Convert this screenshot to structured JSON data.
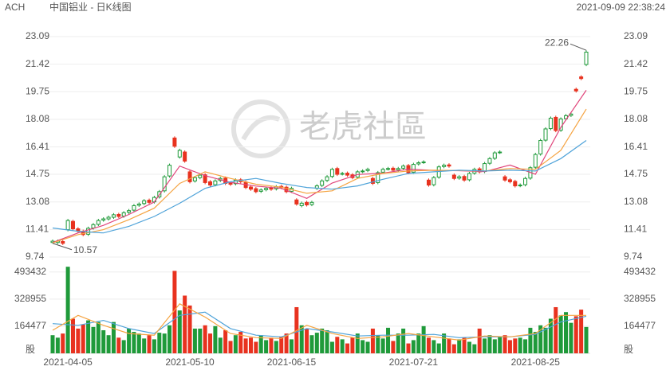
{
  "chart_data": {
    "type": "candlestick",
    "ticker": "ACH",
    "title": "中国铝业 - 日K线图",
    "timestamp": "2021-09-09 22:38:24",
    "watermark": "老虎社區",
    "categories": [
      null,
      null,
      null,
      "2021-04-05",
      null,
      null,
      null,
      null,
      null,
      null,
      null,
      null,
      null,
      null,
      null,
      null,
      null,
      null,
      null,
      null,
      null,
      null,
      null,
      null,
      null,
      null,
      null,
      "2021-05-10",
      null,
      null,
      null,
      null,
      null,
      null,
      null,
      null,
      null,
      null,
      null,
      null,
      null,
      null,
      null,
      null,
      null,
      null,
      null,
      "2021-06-15",
      null,
      null,
      null,
      null,
      null,
      null,
      null,
      null,
      null,
      null,
      null,
      null,
      null,
      null,
      null,
      null,
      null,
      null,
      null,
      null,
      null,
      null,
      null,
      "2021-07-21",
      null,
      null,
      null,
      null,
      null,
      null,
      null,
      null,
      null,
      null,
      null,
      null,
      null,
      null,
      null,
      null,
      null,
      null,
      null,
      null,
      null,
      null,
      null,
      "2021-08-25",
      null,
      null,
      null,
      null,
      null,
      null,
      null,
      null,
      null,
      null
    ],
    "open": [
      10.62,
      10.62,
      10.68,
      11.4,
      11.9,
      11.45,
      11.3,
      11.12,
      11.5,
      11.72,
      11.98,
      12.05,
      12.15,
      12.32,
      12.22,
      12.45,
      12.58,
      12.88,
      12.98,
      13.18,
      13.08,
      13.38,
      13.75,
      14.65,
      16.95,
      15.8,
      16.1,
      14.9,
      14.35,
      14.55,
      14.72,
      14.3,
      14.12,
      14.38,
      14.52,
      14.22,
      14.18,
      14.42,
      14.28,
      13.98,
      13.88,
      13.72,
      13.82,
      13.92,
      13.87,
      14.02,
      13.97,
      13.72,
      13.2,
      12.85,
      13.05,
      12.92,
      13.9,
      14.08,
      14.38,
      14.62,
      15.1,
      14.78,
      14.82,
      14.72,
      14.58,
      14.92,
      14.98,
      14.5,
      14.25,
      14.88,
      15.08,
      15.12,
      15.02,
      15.12,
      15.28,
      14.88,
      15.38,
      15.48,
      14.4,
      14.12,
      14.58,
      15.22,
      15.32,
      14.7,
      14.52,
      14.62,
      14.42,
      14.82,
      15.08,
      14.92,
      15.42,
      15.72,
      16.08,
      14.6,
      14.42,
      14.32,
      14.07,
      14.12,
      14.52,
      15.18,
      15.98,
      16.82,
      17.52,
      18.2,
      17.42,
      18.12,
      18.32,
      19.9,
      20.65,
      21.4
    ],
    "high": [
      10.8,
      10.8,
      10.78,
      12.05,
      12.0,
      11.55,
      11.4,
      11.58,
      11.8,
      12.05,
      12.15,
      12.25,
      12.4,
      12.42,
      12.52,
      12.65,
      12.95,
      13.05,
      13.25,
      13.28,
      13.45,
      13.8,
      14.7,
      15.4,
      17.05,
      16.3,
      16.2,
      15.0,
      14.65,
      14.8,
      14.82,
      14.4,
      14.45,
      14.6,
      14.62,
      14.32,
      14.5,
      14.52,
      14.38,
      14.08,
      13.98,
      13.9,
      14.0,
      14.02,
      14.1,
      14.12,
      14.07,
      14.0,
      13.3,
      13.1,
      13.15,
      13.15,
      14.15,
      14.45,
      14.7,
      15.15,
      15.2,
      14.9,
      14.92,
      14.82,
      15.0,
      15.05,
      15.15,
      14.6,
      14.95,
      15.15,
      15.2,
      15.22,
      15.2,
      15.35,
      15.38,
      15.45,
      15.55,
      15.6,
      14.5,
      14.65,
      15.3,
      15.4,
      15.42,
      14.8,
      14.7,
      14.72,
      14.9,
      15.15,
      15.18,
      15.5,
      15.8,
      16.15,
      16.2,
      14.7,
      14.52,
      14.42,
      14.2,
      14.6,
      15.25,
      16.05,
      16.9,
      17.6,
      18.25,
      18.3,
      18.2,
      18.4,
      18.5,
      20.0,
      20.75,
      22.26
    ],
    "low": [
      10.57,
      10.52,
      10.47,
      11.3,
      11.35,
      11.2,
      11.0,
      11.02,
      11.4,
      11.62,
      11.88,
      11.95,
      12.05,
      12.1,
      12.12,
      12.35,
      12.48,
      12.78,
      12.88,
      12.95,
      12.98,
      13.28,
      13.65,
      14.55,
      16.35,
      15.7,
      15.45,
      14.2,
      14.25,
      14.45,
      14.15,
      14.0,
      14.02,
      14.28,
      14.1,
      14.05,
      14.08,
      14.2,
      13.85,
      13.75,
      13.6,
      13.62,
      13.72,
      13.75,
      13.77,
      13.85,
      13.6,
      13.62,
      12.85,
      12.75,
      12.8,
      12.82,
      13.8,
      13.98,
      14.28,
      14.52,
      14.65,
      14.68,
      14.6,
      14.45,
      14.48,
      14.82,
      14.88,
      14.1,
      14.15,
      14.78,
      14.98,
      14.9,
      14.92,
      15.02,
      14.75,
      14.78,
      15.28,
      15.38,
      14.0,
      14.02,
      14.48,
      15.12,
      15.15,
      14.4,
      14.42,
      14.3,
      14.32,
      14.72,
      14.8,
      14.82,
      15.32,
      15.62,
      15.98,
      14.3,
      14.2,
      13.95,
      13.97,
      14.02,
      14.42,
      15.08,
      15.88,
      16.72,
      17.42,
      17.3,
      17.32,
      18.02,
      18.22,
      19.7,
      20.45,
      21.3
    ],
    "close": [
      10.7,
      10.7,
      10.57,
      11.95,
      11.45,
      11.3,
      11.1,
      11.48,
      11.7,
      11.95,
      12.05,
      12.15,
      12.3,
      12.2,
      12.42,
      12.55,
      12.85,
      12.95,
      13.15,
      13.05,
      13.35,
      13.7,
      14.6,
      15.3,
      16.45,
      16.2,
      15.55,
      14.3,
      14.55,
      14.7,
      14.25,
      14.1,
      14.35,
      14.5,
      14.2,
      14.15,
      14.4,
      14.3,
      13.95,
      13.85,
      13.7,
      13.8,
      13.9,
      13.85,
      14.0,
      13.95,
      13.7,
      13.9,
      12.95,
      13.0,
      12.9,
      13.05,
      14.05,
      14.35,
      14.6,
      15.05,
      14.75,
      14.8,
      14.7,
      14.55,
      14.9,
      14.95,
      15.05,
      14.2,
      14.85,
      15.05,
      15.1,
      15.0,
      15.1,
      15.25,
      14.85,
      15.35,
      15.45,
      15.5,
      14.1,
      14.55,
      15.2,
      15.3,
      15.25,
      14.5,
      14.6,
      14.4,
      14.8,
      15.05,
      14.9,
      15.4,
      15.7,
      16.05,
      16.1,
      14.4,
      14.3,
      14.05,
      14.1,
      14.5,
      15.15,
      15.95,
      16.8,
      17.5,
      18.15,
      17.4,
      18.1,
      18.3,
      18.4,
      19.8,
      20.55,
      22.15
    ],
    "volume": [
      110000,
      95000,
      120000,
      525000,
      210000,
      150000,
      175000,
      200000,
      160000,
      190000,
      140000,
      110000,
      190000,
      95000,
      80000,
      150000,
      130000,
      120000,
      90000,
      110000,
      85000,
      125000,
      120000,
      170000,
      500000,
      260000,
      350000,
      290000,
      150000,
      150000,
      170000,
      120000,
      165000,
      95000,
      140000,
      75000,
      110000,
      130000,
      90000,
      95000,
      70000,
      110000,
      80000,
      95000,
      75000,
      100000,
      120000,
      85000,
      280000,
      170000,
      150000,
      110000,
      125000,
      150000,
      140000,
      70000,
      100000,
      85000,
      60000,
      95000,
      120000,
      80000,
      70000,
      150000,
      110000,
      90000,
      155000,
      75000,
      120000,
      150000,
      60000,
      80000,
      120000,
      165000,
      95000,
      80000,
      60000,
      120000,
      90000,
      55000,
      85000,
      95000,
      70000,
      55000,
      150000,
      90000,
      110000,
      85000,
      100000,
      110000,
      80000,
      90000,
      95000,
      85000,
      155000,
      130000,
      170000,
      155000,
      210000,
      280000,
      230000,
      250000,
      185000,
      225000,
      265000,
      160000
    ],
    "ylim": [
      9.74,
      23.09
    ],
    "yticks": [
      9.74,
      11.41,
      13.08,
      14.75,
      16.41,
      18.08,
      19.75,
      21.42,
      23.09
    ],
    "grid": true,
    "volume_ylim": [
      0,
      526000
    ],
    "volume_yticks": [
      164477,
      328955,
      493432
    ],
    "volume_unit": "股",
    "up_color": "#1f9a3a",
    "down_color": "#e8321f",
    "moving_averages": [
      {
        "color": "#e0457b",
        "x": [
          0,
          5,
          10,
          15,
          20,
          25,
          30,
          35,
          40,
          45,
          50,
          55,
          60,
          65,
          70,
          75,
          80,
          85,
          90,
          95,
          100,
          105
        ],
        "values": [
          10.62,
          11.2,
          11.66,
          12.32,
          13.07,
          15.25,
          14.67,
          14.26,
          14.04,
          13.9,
          13.29,
          14.22,
          14.74,
          14.82,
          15.06,
          14.99,
          14.97,
          14.91,
          15.31,
          14.75,
          17.59,
          19.84
        ]
      },
      {
        "color": "#f5a442",
        "x": [
          0,
          5,
          10,
          15,
          20,
          25,
          30,
          35,
          40,
          45,
          50,
          55,
          60,
          65,
          70,
          75,
          80,
          85,
          90,
          95,
          100,
          105
        ],
        "values": [
          10.6,
          11.1,
          11.4,
          12.0,
          12.7,
          14.2,
          14.9,
          14.5,
          14.15,
          13.97,
          13.6,
          13.75,
          14.5,
          14.8,
          14.95,
          15.0,
          14.98,
          14.95,
          15.1,
          15.05,
          16.2,
          18.7
        ]
      },
      {
        "color": "#4fa3d9",
        "x": [
          0,
          5,
          10,
          15,
          20,
          25,
          30,
          35,
          40,
          45,
          50,
          55,
          60,
          65,
          70,
          75,
          80,
          85,
          90,
          95,
          100,
          105
        ],
        "values": [
          11.5,
          11.3,
          11.2,
          11.6,
          12.2,
          13.0,
          13.9,
          14.3,
          14.5,
          14.2,
          13.95,
          13.85,
          14.05,
          14.45,
          14.8,
          14.9,
          15.0,
          14.95,
          15.0,
          14.95,
          15.7,
          16.8
        ]
      }
    ],
    "volume_averages": [
      {
        "color": "#4fa3d9",
        "x": [
          0,
          5,
          10,
          15,
          20,
          25,
          30,
          35,
          40,
          45,
          50,
          55,
          60,
          65,
          70,
          75,
          80,
          85,
          90,
          95,
          100,
          105
        ],
        "values": [
          180000,
          170000,
          200000,
          150000,
          120000,
          230000,
          250000,
          150000,
          110000,
          100000,
          150000,
          130000,
          105000,
          110000,
          110000,
          115000,
          95000,
          100000,
          100000,
          115000,
          190000,
          225000
        ]
      },
      {
        "color": "#f5a442",
        "x": [
          0,
          5,
          10,
          15,
          20,
          25,
          30,
          35,
          40,
          45,
          50,
          55,
          60,
          65,
          70,
          75,
          80,
          85,
          90,
          95,
          100,
          105
        ],
        "values": [
          140000,
          230000,
          170000,
          120000,
          110000,
          300000,
          220000,
          120000,
          95000,
          90000,
          170000,
          120000,
          90000,
          100000,
          120000,
          100000,
          80000,
          105000,
          100000,
          120000,
          230000,
          230000
        ]
      }
    ]
  }
}
